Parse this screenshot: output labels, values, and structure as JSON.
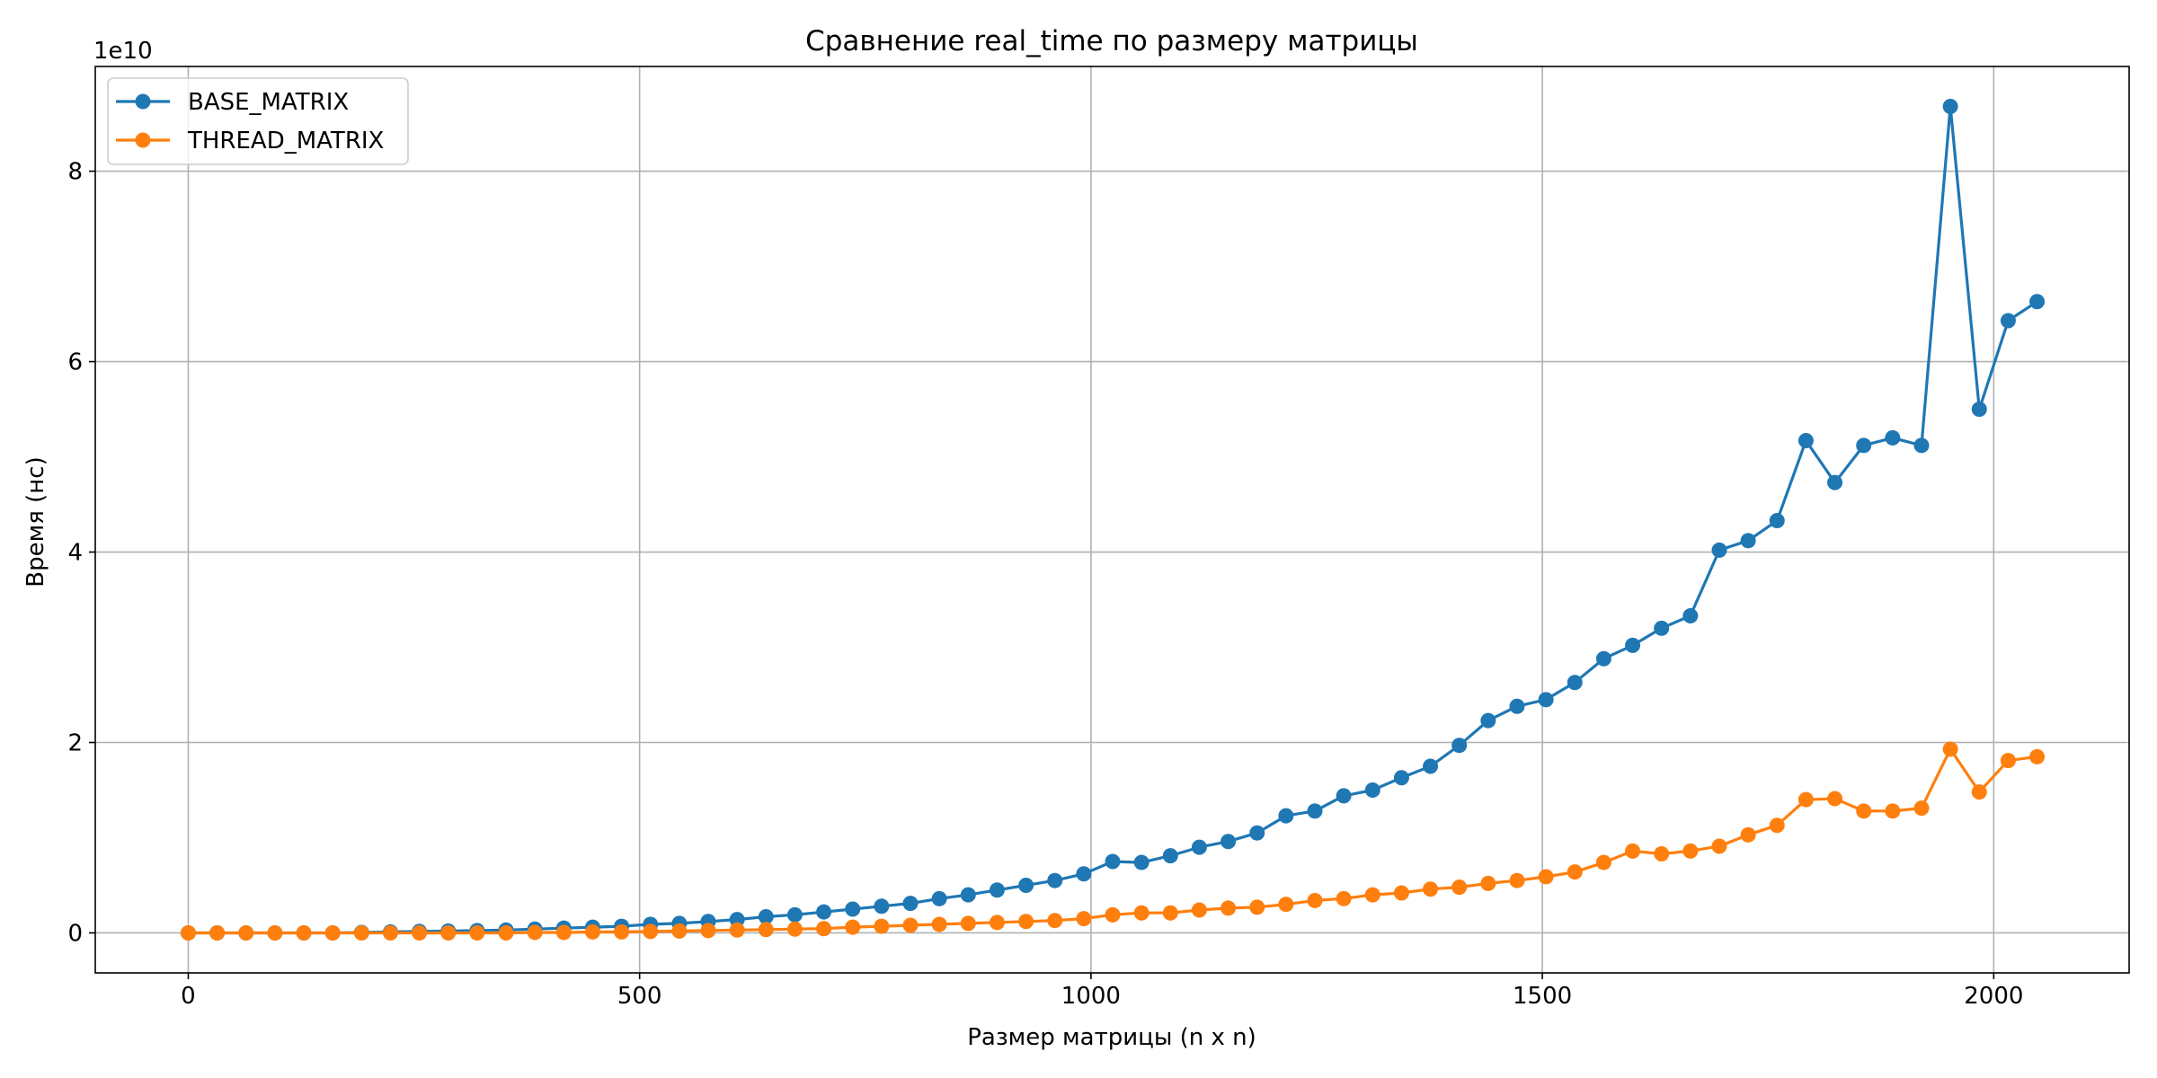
{
  "chart_data": {
    "type": "line",
    "title": "Сравнение real_time по размеру матрицы",
    "xlabel": "Размер матрицы (n x n)",
    "ylabel": "Время (нс)",
    "y_offset_label": "1e10",
    "xlim": [
      -103,
      2150
    ],
    "ylim": [
      -0.42,
      9.1
    ],
    "x_ticks": [
      0,
      500,
      1000,
      1500,
      2000
    ],
    "x_tick_labels": [
      "0",
      "500",
      "1000",
      "1500",
      "2000"
    ],
    "y_ticks": [
      0,
      2,
      4,
      6,
      8
    ],
    "y_tick_labels": [
      "0",
      "2",
      "4",
      "6",
      "8"
    ],
    "grid": true,
    "legend": "upper-left",
    "x": [
      0,
      32,
      64,
      96,
      128,
      160,
      192,
      224,
      256,
      288,
      320,
      352,
      384,
      416,
      448,
      480,
      512,
      544,
      576,
      608,
      640,
      672,
      704,
      736,
      768,
      800,
      832,
      864,
      896,
      928,
      960,
      992,
      1024,
      1056,
      1088,
      1120,
      1152,
      1184,
      1216,
      1248,
      1280,
      1312,
      1344,
      1376,
      1408,
      1440,
      1472,
      1504,
      1536,
      1568,
      1600,
      1632,
      1664,
      1696,
      1728,
      1760,
      1792,
      1824,
      1856,
      1888,
      1920,
      1952,
      1984,
      2016,
      2048
    ],
    "series": [
      {
        "name": "BASE_MATRIX",
        "color": "#1f77b4",
        "values": [
          0.0,
          0.0,
          0.0,
          0.0,
          0.0,
          0.0,
          0.005,
          0.01,
          0.015,
          0.02,
          0.025,
          0.03,
          0.04,
          0.05,
          0.06,
          0.07,
          0.09,
          0.1,
          0.12,
          0.14,
          0.17,
          0.19,
          0.22,
          0.25,
          0.28,
          0.31,
          0.36,
          0.4,
          0.45,
          0.5,
          0.55,
          0.62,
          0.75,
          0.74,
          0.81,
          0.9,
          0.96,
          1.05,
          1.23,
          1.28,
          1.44,
          1.5,
          1.63,
          1.75,
          1.97,
          2.23,
          2.38,
          2.45,
          2.63,
          2.88,
          3.02,
          3.2,
          3.33,
          4.02,
          4.12,
          4.33,
          5.17,
          4.73,
          5.12,
          5.2,
          5.12,
          8.68,
          5.5,
          6.43,
          6.63
        ]
      },
      {
        "name": "THREAD_MATRIX",
        "color": "#ff7f0e",
        "values": [
          0.0,
          0.0,
          0.0,
          0.0,
          0.0,
          0.0,
          0.0,
          0.0,
          0.0,
          0.0,
          0.0,
          0.0,
          0.005,
          0.005,
          0.01,
          0.01,
          0.015,
          0.02,
          0.025,
          0.03,
          0.035,
          0.04,
          0.045,
          0.06,
          0.07,
          0.08,
          0.09,
          0.1,
          0.11,
          0.12,
          0.13,
          0.15,
          0.19,
          0.21,
          0.21,
          0.24,
          0.26,
          0.27,
          0.3,
          0.34,
          0.36,
          0.4,
          0.42,
          0.46,
          0.48,
          0.52,
          0.55,
          0.59,
          0.64,
          0.74,
          0.86,
          0.83,
          0.86,
          0.91,
          1.03,
          1.13,
          1.4,
          1.41,
          1.28,
          1.28,
          1.31,
          1.93,
          1.48,
          1.81,
          1.85
        ]
      }
    ]
  }
}
